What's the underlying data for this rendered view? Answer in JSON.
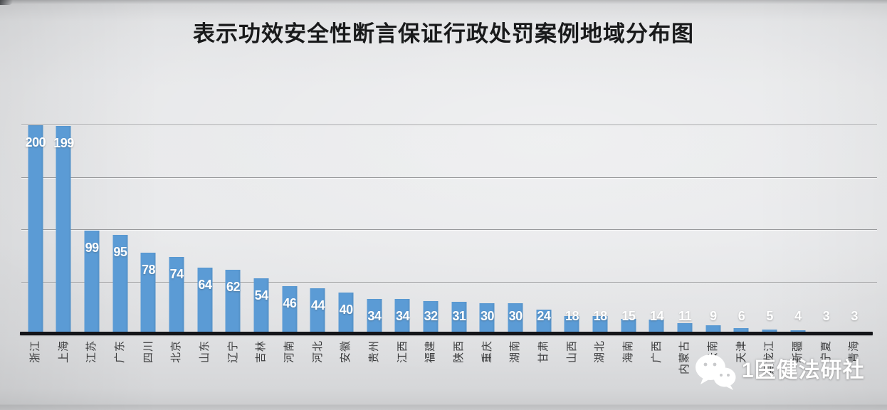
{
  "title": "表示功效安全性断言保证行政处罚案例地域分布图",
  "watermark": {
    "text": "1医健法研社",
    "icon": "wechat-bubbles-icon"
  },
  "colors": {
    "bar": "#5b9bd5",
    "value_label": "#ffffff",
    "gridline": "#98999b",
    "axis_line": "#141519",
    "x_label": "#3c3d3e",
    "background": "#e6e7e9",
    "title": "#191a1b",
    "watermark": "#ffffff"
  },
  "chart_data": {
    "type": "bar",
    "title": "表示功效安全性断言保证行政处罚案例地域分布图",
    "categories": [
      "浙江",
      "上海",
      "江苏",
      "广东",
      "四川",
      "北京",
      "山东",
      "辽宁",
      "吉林",
      "河南",
      "河北",
      "安徽",
      "贵州",
      "江西",
      "福建",
      "陕西",
      "重庆",
      "湖南",
      "甘肃",
      "山西",
      "湖北",
      "海南",
      "广西",
      "内蒙古",
      "云南",
      "天津",
      "黑龙江",
      "新疆",
      "宁夏",
      "青海"
    ],
    "values": [
      200,
      199,
      99,
      95,
      78,
      74,
      64,
      62,
      54,
      46,
      44,
      40,
      34,
      34,
      32,
      31,
      30,
      30,
      24,
      18,
      18,
      15,
      14,
      11,
      9,
      6,
      5,
      4,
      3,
      3
    ],
    "xlabel": "",
    "ylabel": "",
    "ylim": [
      0,
      200
    ],
    "gridlines": [
      50,
      100,
      150,
      200
    ],
    "grid": true,
    "legend": "none",
    "y_tick_labels_visible": false,
    "value_labels": "inside-end-white-bold",
    "x_label_rotation_deg": 90
  }
}
